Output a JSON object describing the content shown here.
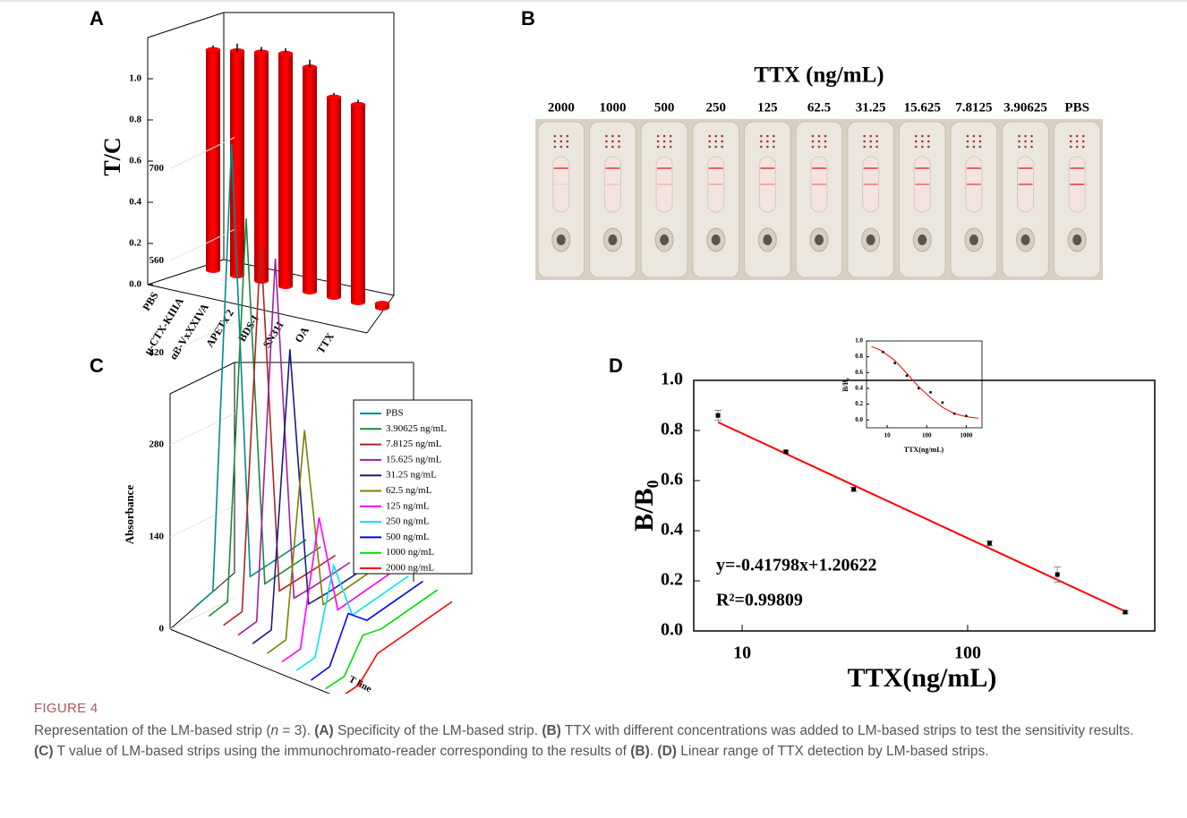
{
  "chart_data": [
    {
      "type": "bar3d",
      "panel": "A",
      "categories": [
        "PBS",
        "μ-CTX-KIIIA",
        "αB-VxXXIVA",
        "APETx 2",
        "BDS-I",
        "SN311",
        "OA",
        "TTX"
      ],
      "values": [
        1.07,
        1.09,
        1.11,
        1.13,
        1.09,
        0.97,
        0.96,
        0.02
      ],
      "errors": [
        0.005,
        0.02,
        0.01,
        0.01,
        0.02,
        0.005,
        0.008,
        0
      ],
      "color": "#ff0000",
      "ylabel": "T/C",
      "ylim": [
        0,
        1.2
      ],
      "yticks": [
        {
          "value": 0,
          "label": "0.0"
        },
        0.2,
        0.4,
        0.6,
        0.8,
        {
          "value": 1,
          "label": "1.0"
        }
      ]
    },
    {
      "type": "waterfall",
      "panel": "C",
      "ylabel": "Absorbance",
      "xlabel": "T line",
      "categories": [
        null,
        null,
        null,
        null,
        null,
        null,
        null
      ],
      "ylim": [
        0,
        700
      ],
      "yticks": [
        0,
        140,
        280,
        420,
        560,
        700
      ],
      "series": [
        {
          "name": "PBS",
          "color": "#008b8b",
          "values": [
            15,
            25,
            690,
            18,
            22,
            26,
            30
          ]
        },
        {
          "name": "3.90625 ng/mL",
          "color": "#1a8a3a",
          "values": [
            15,
            22,
            590,
            20,
            24,
            28,
            32
          ]
        },
        {
          "name": "7.8125 ng/mL",
          "color": "#b22222",
          "values": [
            14,
            20,
            565,
            22,
            25,
            28,
            32
          ]
        },
        {
          "name": "15.625 ng/mL",
          "color": "#a020a0",
          "values": [
            12,
            18,
            555,
            24,
            26,
            30,
            34
          ]
        },
        {
          "name": "31.25 ng/mL",
          "color": "#1c1c80",
          "values": [
            12,
            18,
            430,
            28,
            30,
            34,
            38
          ]
        },
        {
          "name": "62.5 ng/mL",
          "color": "#808000",
          "values": [
            10,
            16,
            320,
            40,
            45,
            50,
            55
          ]
        },
        {
          "name": "125  ng/mL",
          "color": "#ff00ff",
          "values": [
            10,
            15,
            200,
            45,
            50,
            55,
            60
          ]
        },
        {
          "name": "250 ng/mL",
          "color": "#00e5ee",
          "values": [
            10,
            15,
            140,
            50,
            55,
            60,
            65
          ]
        },
        {
          "name": "500 ng/mL",
          "color": "#0000ff",
          "values": [
            8,
            14,
            80,
            55,
            60,
            65,
            70
          ]
        },
        {
          "name": "1000 ng/mL",
          "color": "#00dd00",
          "values": [
            8,
            12,
            60,
            55,
            60,
            65,
            70
          ]
        },
        {
          "name": "2000 ng/mL",
          "color": "#ff0000",
          "values": [
            8,
            12,
            45,
            50,
            55,
            60,
            65
          ]
        }
      ]
    },
    {
      "type": "scatter",
      "panel": "D",
      "xlog": true,
      "color": "#000000",
      "x": [
        7.8125,
        15.625,
        31.25,
        125,
        250,
        500
      ],
      "values": [
        0.86,
        0.715,
        0.565,
        0.35,
        0.225,
        0.075
      ],
      "errors": [
        0.02,
        0.005,
        0.008,
        0.01,
        0.03,
        0.005
      ],
      "xlim": [
        6.1,
        676
      ],
      "ylim": [
        0,
        1
      ],
      "xticks": [
        10,
        100
      ],
      "yticks": [
        {
          "value": 0,
          "label": "0.0"
        },
        0.2,
        0.4,
        0.6,
        0.8,
        {
          "value": 1,
          "label": "1.0"
        }
      ],
      "xlabel": "TTX(ng/mL)",
      "ylabel": "B/B₀",
      "fit": {
        "slope": -0.41798,
        "intercept": 1.20622,
        "color": "#ff0000"
      },
      "annotations": [
        "y=-0.41798x+1.20622",
        "R²=0.99809"
      ]
    },
    {
      "type": "scatter",
      "xlog": true,
      "color": "#000000",
      "x": [
        7.8125,
        15.625,
        31.25,
        62.5,
        125,
        250,
        500,
        1000
      ],
      "values": [
        0.86,
        0.72,
        0.56,
        0.4,
        0.35,
        0.22,
        0.08,
        0.05
      ],
      "xlim": [
        3,
        2500
      ],
      "ylim": [
        -0.1,
        1
      ],
      "xticks": [
        10,
        100,
        1000
      ],
      "yticks": [
        {
          "value": 0,
          "label": "0.0"
        },
        0.2,
        0.4,
        0.6,
        0.8,
        {
          "value": 1,
          "label": "1.0"
        }
      ],
      "xlabel": "TTX(ng/mL)",
      "ylabel": "B/B₀",
      "curve": {
        "color": "#ff0000",
        "x": [
          4,
          7,
          15,
          30,
          60,
          125,
          250,
          500,
          1000,
          2000
        ],
        "values": [
          0.93,
          0.88,
          0.76,
          0.6,
          0.43,
          0.28,
          0.16,
          0.08,
          0.04,
          0.02
        ]
      }
    }
  ],
  "photo": {
    "panel": "B",
    "title": "TTX (ng/mL)",
    "labels": [
      "2000",
      "1000",
      "500",
      "250",
      "125",
      "62.5",
      "31.25",
      "15.625",
      "7.8125",
      "3.90625",
      "PBS"
    ]
  },
  "caption": {
    "label": "FIGURE 4",
    "segments": [
      {
        "text": "Representation of the LM-based strip (",
        "style": "normal"
      },
      {
        "text": "n",
        "style": "italic"
      },
      {
        "text": " = 3). ",
        "style": "normal"
      },
      {
        "text": "(A)",
        "style": "bold"
      },
      {
        "text": " Specificity of the LM-based strip. ",
        "style": "normal"
      },
      {
        "text": "(B)",
        "style": "bold"
      },
      {
        "text": " TTX with different concentrations was added to LM-based strips to test the sensitivity results. ",
        "style": "normal"
      },
      {
        "text": "(C)",
        "style": "bold"
      },
      {
        "text": " T value of LM-based strips using the immunochromato-reader corresponding to the results of ",
        "style": "normal"
      },
      {
        "text": "(B)",
        "style": "bold"
      },
      {
        "text": ". ",
        "style": "normal"
      },
      {
        "text": "(D)",
        "style": "bold"
      },
      {
        "text": " Linear range of TTX detection by LM-based strips.",
        "style": "normal"
      }
    ]
  }
}
